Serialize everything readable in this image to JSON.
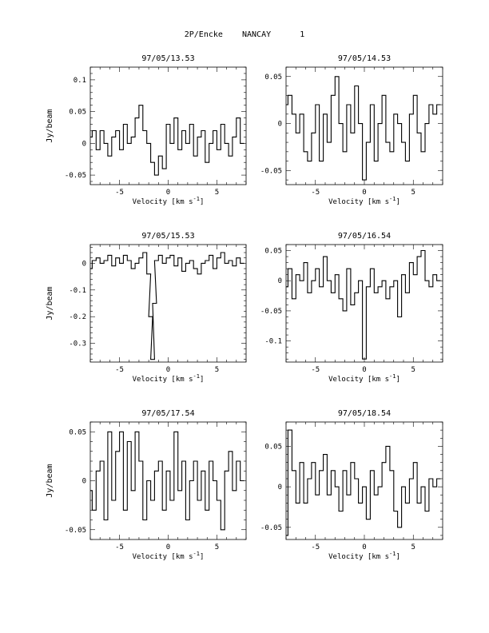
{
  "page": {
    "title": "2P/Encke    NANCAY      1"
  },
  "chart_data": [
    {
      "type": "line",
      "title": "97/05/13.53",
      "xlabel": "Velocity [km s^-1]",
      "ylabel": "Jy/beam",
      "xlim": [
        -8,
        8
      ],
      "ylim": [
        -0.065,
        0.12
      ],
      "xticks": [
        -5,
        0,
        5
      ],
      "yticks": [
        -0.05,
        0,
        0.05,
        0.1
      ],
      "ytick_labels": [
        "-0.05",
        "0",
        "0.05",
        "0.1"
      ],
      "x": [
        -8.0,
        -7.6,
        -7.2,
        -6.8,
        -6.4,
        -6.0,
        -5.6,
        -5.2,
        -4.8,
        -4.4,
        -4.0,
        -3.6,
        -3.2,
        -2.8,
        -2.4,
        -2.0,
        -1.6,
        -1.2,
        -0.8,
        -0.4,
        0.0,
        0.4,
        0.8,
        1.2,
        1.6,
        2.0,
        2.4,
        2.8,
        3.2,
        3.6,
        4.0,
        4.4,
        4.8,
        5.2,
        5.6,
        6.0,
        6.4,
        6.8,
        7.2,
        7.6
      ],
      "y": [
        0.01,
        0.02,
        -0.01,
        0.02,
        0.0,
        -0.02,
        0.01,
        0.02,
        -0.01,
        0.03,
        0.0,
        0.01,
        0.04,
        0.06,
        0.02,
        0.0,
        -0.03,
        -0.05,
        -0.02,
        -0.04,
        0.03,
        0.0,
        0.04,
        -0.01,
        0.02,
        0.0,
        0.03,
        -0.02,
        0.01,
        0.02,
        -0.03,
        0.0,
        0.02,
        -0.01,
        0.03,
        0.0,
        -0.02,
        0.01,
        0.04,
        0.0
      ]
    },
    {
      "type": "line",
      "title": "97/05/14.53",
      "xlabel": "Velocity [km s^-1]",
      "ylabel": "",
      "xlim": [
        -8,
        8
      ],
      "ylim": [
        -0.065,
        0.06
      ],
      "xticks": [
        -5,
        0,
        5
      ],
      "yticks": [
        -0.05,
        0,
        0.05
      ],
      "ytick_labels": [
        "-0.05",
        "0",
        "0.05"
      ],
      "x": [
        -8.0,
        -7.6,
        -7.2,
        -6.8,
        -6.4,
        -6.0,
        -5.6,
        -5.2,
        -4.8,
        -4.4,
        -4.0,
        -3.6,
        -3.2,
        -2.8,
        -2.4,
        -2.0,
        -1.6,
        -1.2,
        -0.8,
        -0.4,
        0.0,
        0.4,
        0.8,
        1.2,
        1.6,
        2.0,
        2.4,
        2.8,
        3.2,
        3.6,
        4.0,
        4.4,
        4.8,
        5.2,
        5.6,
        6.0,
        6.4,
        6.8,
        7.2,
        7.6
      ],
      "y": [
        0.02,
        0.03,
        0.01,
        -0.01,
        0.01,
        -0.03,
        -0.04,
        -0.01,
        0.02,
        -0.04,
        0.01,
        -0.02,
        0.03,
        0.05,
        0.0,
        -0.03,
        0.02,
        -0.01,
        0.04,
        0.0,
        -0.06,
        -0.02,
        0.02,
        -0.04,
        0.0,
        0.03,
        -0.02,
        -0.03,
        0.01,
        0.0,
        -0.02,
        -0.04,
        0.01,
        0.03,
        -0.01,
        -0.03,
        0.0,
        0.02,
        0.01,
        0.02
      ]
    },
    {
      "type": "line",
      "title": "97/05/15.53",
      "xlabel": "Velocity [km s^-1]",
      "ylabel": "Jy/beam",
      "xlim": [
        -8,
        8
      ],
      "ylim": [
        -0.37,
        0.07
      ],
      "xticks": [
        -5,
        0,
        5
      ],
      "yticks": [
        -0.3,
        -0.2,
        -0.1,
        0
      ],
      "ytick_labels": [
        "-0.3",
        "-0.2",
        "-0.1",
        "0"
      ],
      "x": [
        -8.0,
        -7.6,
        -7.2,
        -6.8,
        -6.4,
        -6.0,
        -5.6,
        -5.2,
        -4.8,
        -4.4,
        -4.0,
        -3.6,
        -3.2,
        -2.8,
        -2.4,
        -2.0,
        -1.8,
        -1.6,
        -1.4,
        -1.2,
        -0.8,
        -0.4,
        0.0,
        0.4,
        0.8,
        1.2,
        1.6,
        2.0,
        2.4,
        2.8,
        3.2,
        3.6,
        4.0,
        4.4,
        4.8,
        5.2,
        5.6,
        6.0,
        6.4,
        6.8,
        7.2,
        7.6
      ],
      "y": [
        -0.02,
        0.01,
        0.02,
        0.0,
        0.01,
        0.03,
        -0.01,
        0.02,
        0.0,
        0.03,
        0.01,
        -0.02,
        0.0,
        0.02,
        0.04,
        -0.04,
        -0.2,
        -0.36,
        -0.15,
        0.01,
        0.03,
        0.0,
        0.02,
        0.03,
        -0.01,
        0.02,
        -0.03,
        0.0,
        0.01,
        -0.02,
        -0.04,
        0.0,
        0.01,
        0.03,
        -0.02,
        0.02,
        0.04,
        0.0,
        0.01,
        -0.01,
        0.02,
        0.0
      ]
    },
    {
      "type": "line",
      "title": "97/05/16.54",
      "xlabel": "Velocity [km s^-1]",
      "ylabel": "",
      "xlim": [
        -8,
        8
      ],
      "ylim": [
        -0.135,
        0.06
      ],
      "xticks": [
        -5,
        0,
        5
      ],
      "yticks": [
        -0.1,
        -0.05,
        0,
        0.05
      ],
      "ytick_labels": [
        "-0.1",
        "-0.05",
        "0",
        "0.05"
      ],
      "x": [
        -8.0,
        -7.6,
        -7.2,
        -6.8,
        -6.4,
        -6.0,
        -5.6,
        -5.2,
        -4.8,
        -4.4,
        -4.0,
        -3.6,
        -3.2,
        -2.8,
        -2.4,
        -2.0,
        -1.6,
        -1.2,
        -0.8,
        -0.4,
        0.0,
        0.4,
        0.8,
        1.2,
        1.6,
        2.0,
        2.4,
        2.8,
        3.2,
        3.6,
        4.0,
        4.4,
        4.8,
        5.2,
        5.6,
        6.0,
        6.4,
        6.8,
        7.2,
        7.6
      ],
      "y": [
        -0.01,
        0.02,
        -0.03,
        0.01,
        0.0,
        0.03,
        -0.02,
        0.0,
        0.02,
        -0.01,
        0.04,
        0.0,
        -0.02,
        0.01,
        -0.03,
        -0.05,
        0.02,
        -0.04,
        -0.02,
        0.0,
        -0.13,
        -0.01,
        0.02,
        -0.02,
        -0.01,
        0.0,
        -0.03,
        -0.01,
        0.0,
        -0.06,
        0.01,
        -0.02,
        0.03,
        0.01,
        0.04,
        0.05,
        0.0,
        -0.01,
        0.01,
        0.0
      ]
    },
    {
      "type": "line",
      "title": "97/05/17.54",
      "xlabel": "Velocity [km s^-1]",
      "ylabel": "Jy/beam",
      "xlim": [
        -8,
        8
      ],
      "ylim": [
        -0.06,
        0.06
      ],
      "xticks": [
        -5,
        0,
        5
      ],
      "yticks": [
        -0.05,
        0,
        0.05
      ],
      "ytick_labels": [
        "-0.05",
        "0",
        "0.05"
      ],
      "x": [
        -8.0,
        -7.6,
        -7.2,
        -6.8,
        -6.4,
        -6.0,
        -5.6,
        -5.2,
        -4.8,
        -4.4,
        -4.0,
        -3.6,
        -3.2,
        -2.8,
        -2.4,
        -2.0,
        -1.6,
        -1.2,
        -0.8,
        -0.4,
        0.0,
        0.4,
        0.8,
        1.2,
        1.6,
        2.0,
        2.4,
        2.8,
        3.2,
        3.6,
        4.0,
        4.4,
        4.8,
        5.2,
        5.6,
        6.0,
        6.4,
        6.8,
        7.2,
        7.6
      ],
      "y": [
        -0.01,
        -0.03,
        0.01,
        0.02,
        -0.04,
        0.05,
        -0.02,
        0.03,
        0.05,
        -0.03,
        0.04,
        -0.01,
        0.05,
        0.02,
        -0.04,
        0.0,
        -0.02,
        0.01,
        0.02,
        -0.03,
        0.01,
        -0.02,
        0.05,
        -0.01,
        0.02,
        -0.04,
        0.0,
        0.02,
        -0.02,
        0.01,
        -0.03,
        0.02,
        0.0,
        -0.02,
        -0.05,
        0.01,
        0.03,
        -0.01,
        0.02,
        0.0
      ]
    },
    {
      "type": "line",
      "title": "97/05/18.54",
      "xlabel": "Velocity [km s^-1]",
      "ylabel": "",
      "xlim": [
        -8,
        8
      ],
      "ylim": [
        -0.065,
        0.08
      ],
      "xticks": [
        -5,
        0,
        5
      ],
      "yticks": [
        -0.05,
        0,
        0.05
      ],
      "ytick_labels": [
        "-0.05",
        "0",
        "0.05"
      ],
      "x": [
        -8.0,
        -7.6,
        -7.2,
        -6.8,
        -6.4,
        -6.0,
        -5.6,
        -5.2,
        -4.8,
        -4.4,
        -4.0,
        -3.6,
        -3.2,
        -2.8,
        -2.4,
        -2.0,
        -1.6,
        -1.2,
        -0.8,
        -0.4,
        0.0,
        0.4,
        0.8,
        1.2,
        1.6,
        2.0,
        2.4,
        2.8,
        3.2,
        3.6,
        4.0,
        4.4,
        4.8,
        5.2,
        5.6,
        6.0,
        6.4,
        6.8,
        7.2,
        7.6
      ],
      "y": [
        -0.06,
        0.07,
        0.02,
        -0.02,
        0.03,
        -0.02,
        0.01,
        0.03,
        -0.01,
        0.02,
        0.04,
        -0.01,
        0.02,
        0.0,
        -0.03,
        0.02,
        -0.01,
        0.03,
        0.01,
        -0.02,
        0.0,
        -0.04,
        0.02,
        -0.01,
        0.0,
        0.03,
        0.05,
        0.02,
        -0.03,
        -0.05,
        0.0,
        -0.02,
        0.01,
        0.03,
        -0.02,
        0.0,
        -0.03,
        0.01,
        0.0,
        0.01
      ]
    }
  ]
}
